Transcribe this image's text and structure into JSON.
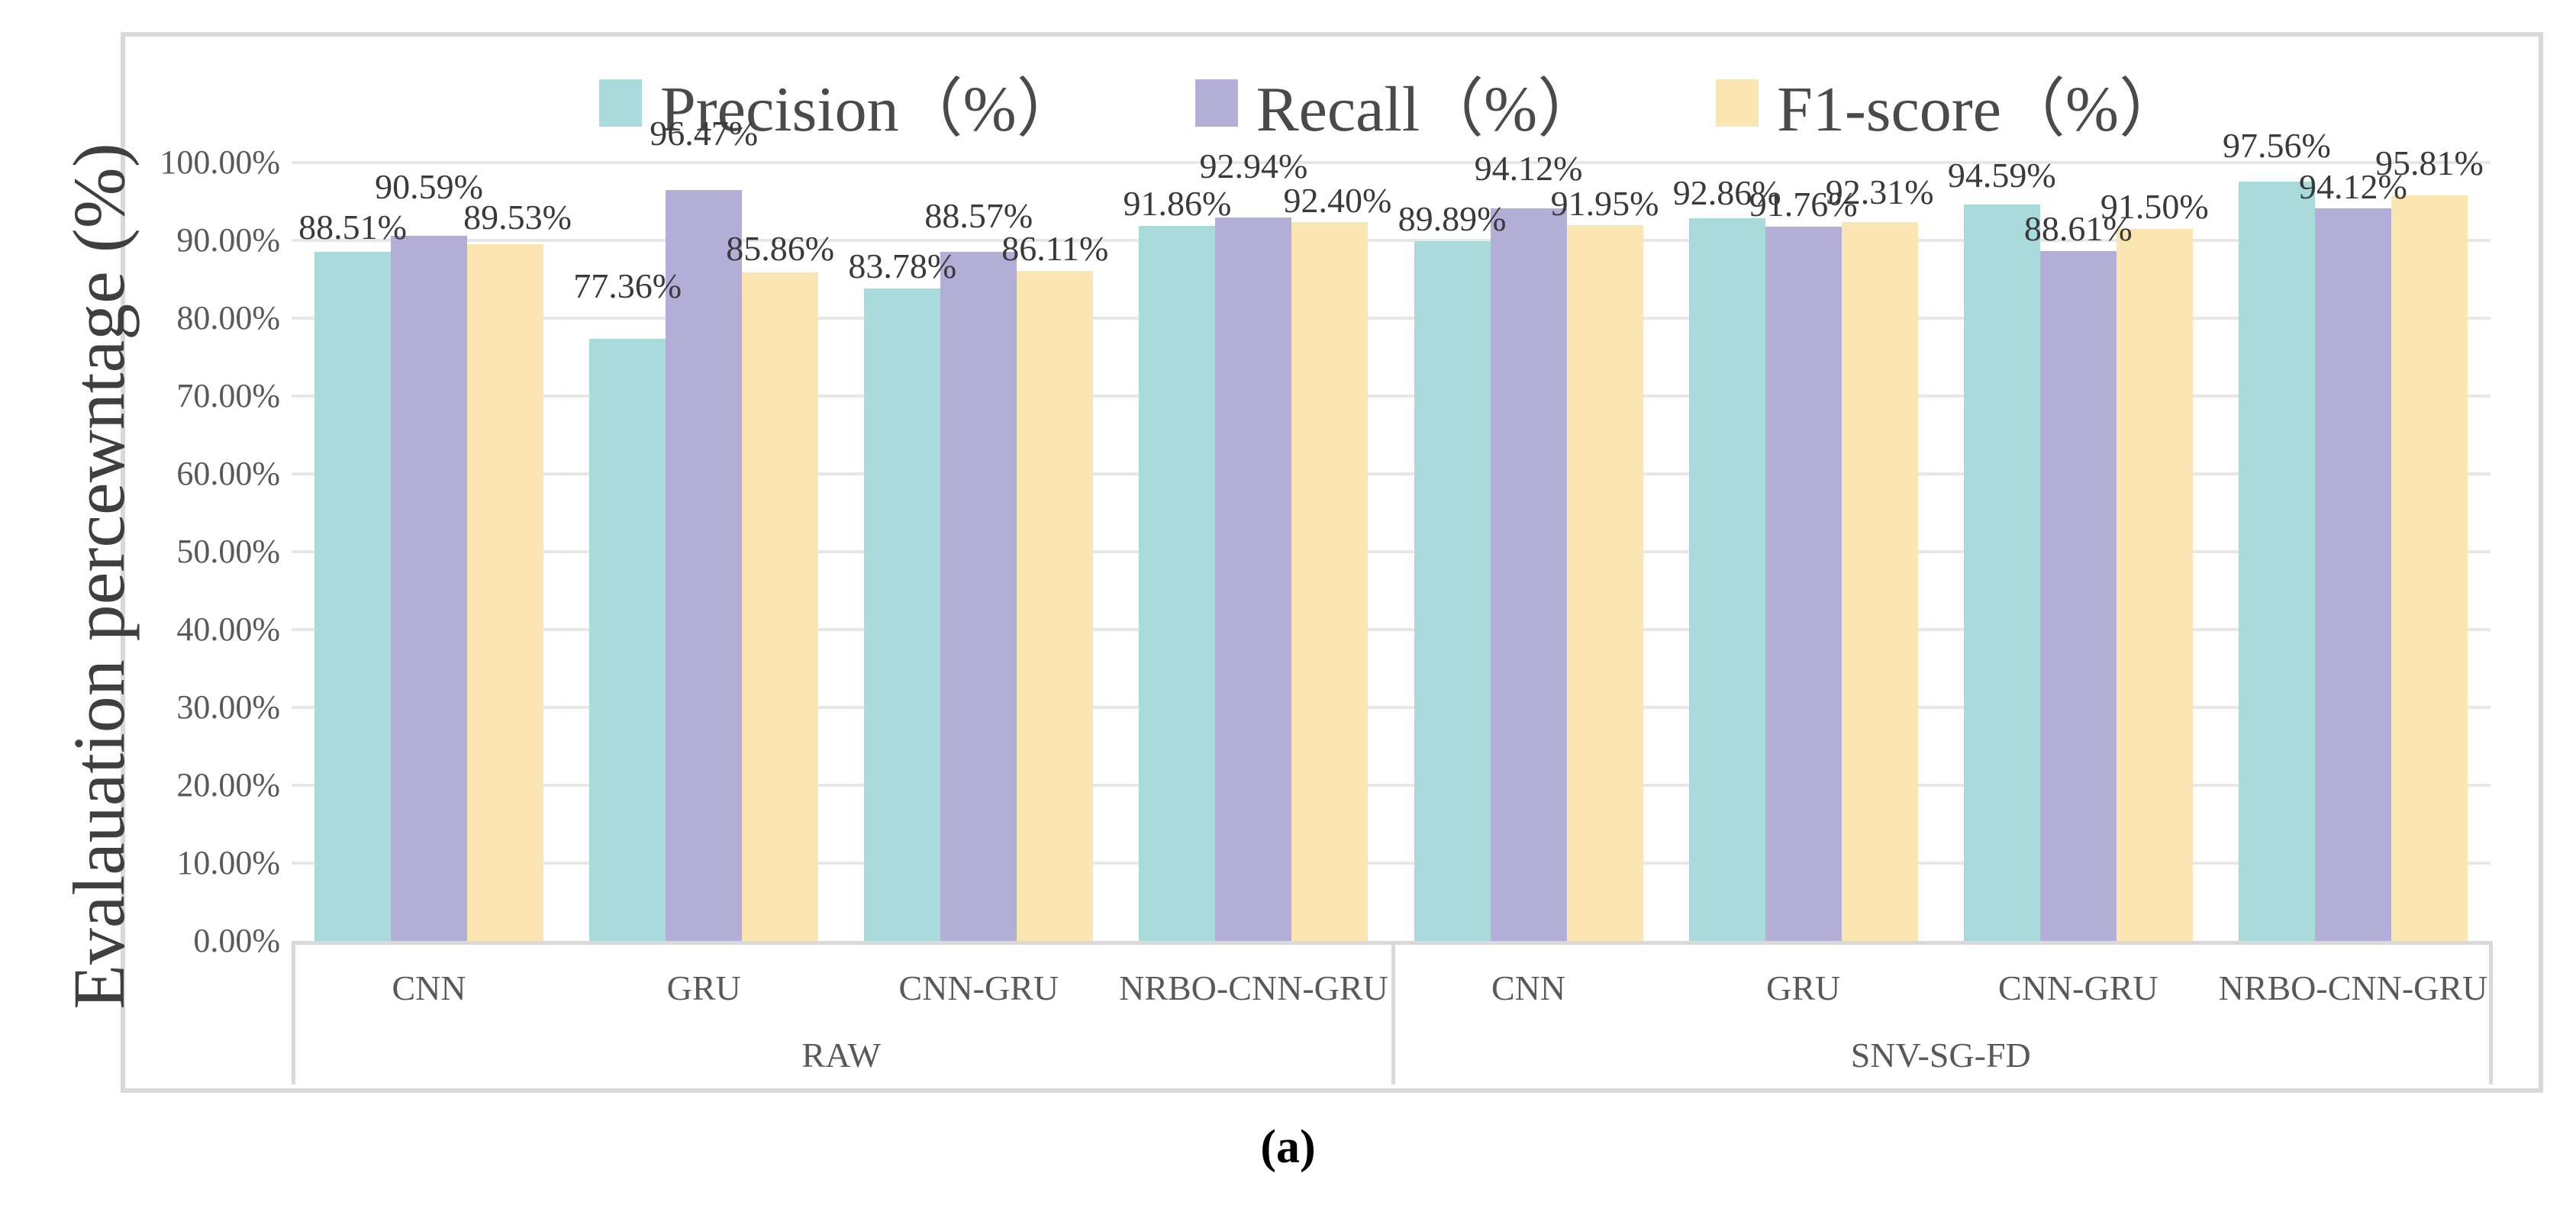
{
  "figure": {
    "caption": "(a)",
    "y_axis_title": "Evalauation percewntage (%)"
  },
  "chart_data": {
    "type": "bar",
    "title": "",
    "xlabel": "",
    "ylabel": "Evalauation percewntage (%)",
    "ylim": [
      0,
      100
    ],
    "grid": true,
    "legend_position": "top-center",
    "y_ticks": [
      "0.00%",
      "10.00%",
      "20.00%",
      "30.00%",
      "40.00%",
      "50.00%",
      "60.00%",
      "70.00%",
      "80.00%",
      "90.00%",
      "100.00%"
    ],
    "categories": [
      "CNN",
      "GRU",
      "CNN-GRU",
      "NRBO-CNN-GRU",
      "CNN",
      "GRU",
      "CNN-GRU",
      "NRBO-CNN-GRU"
    ],
    "category_groups": [
      {
        "label": "RAW",
        "span": [
          0,
          3
        ]
      },
      {
        "label": "SNV-SG-FD",
        "span": [
          4,
          7
        ]
      }
    ],
    "series": [
      {
        "name": "Precision（%）",
        "color": "#A8DBDA",
        "values": [
          88.51,
          77.36,
          83.78,
          91.86,
          89.89,
          92.86,
          94.59,
          97.56
        ]
      },
      {
        "name": "Recall（%）",
        "color": "#B3AED8",
        "values": [
          90.59,
          96.47,
          88.57,
          92.94,
          94.12,
          91.76,
          88.61,
          94.12
        ]
      },
      {
        "name": "F1-score（%）",
        "color": "#FBE5B2",
        "values": [
          89.53,
          85.86,
          86.11,
          92.4,
          91.95,
          92.31,
          91.5,
          95.81
        ]
      }
    ],
    "data_label_format": "0.00%",
    "label_layout": {
      "gaps": [
        [
          15,
          52,
          12,
          12,
          12,
          16,
          21,
          30
        ],
        [
          47,
          57,
          30,
          50,
          35,
          12,
          12,
          11
        ],
        [
          18,
          14,
          12,
          11,
          11,
          22,
          12,
          25
        ]
      ],
      "dx": [
        [
          0,
          0,
          0,
          0,
          0,
          0,
          0,
          0
        ],
        [
          0,
          0,
          0,
          0,
          0,
          0,
          0,
          0
        ],
        [
          16,
          0,
          0,
          10,
          0,
          0,
          0,
          0
        ]
      ]
    }
  }
}
